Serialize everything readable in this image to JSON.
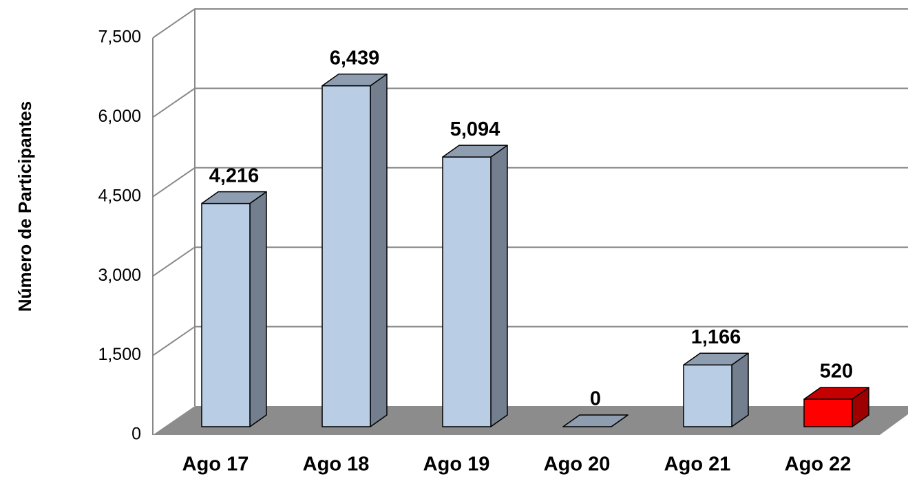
{
  "chart_data": {
    "type": "bar3d",
    "y_label": "Número de Participantes",
    "categories": [
      "Ago 17",
      "Ago 18",
      "Ago 19",
      "Ago 20",
      "Ago 21",
      "Ago 22"
    ],
    "values": [
      4216,
      6439,
      5094,
      0,
      1166,
      520
    ],
    "value_labels": [
      "4,216",
      "6,439",
      "5,094",
      "0",
      "1,166",
      "520"
    ],
    "colors": [
      "#b9cde5",
      "#b9cde5",
      "#b9cde5",
      "#b9cde5",
      "#b9cde5",
      "#ff0000"
    ],
    "ylim": [
      0,
      7500
    ],
    "yticks": [
      0,
      {
        "value": 1500,
        "label": "1,500"
      },
      {
        "value": 3000,
        "label": "3,000"
      },
      {
        "value": 4500,
        "label": "4,500"
      },
      {
        "value": 6000,
        "label": "6,000"
      },
      {
        "value": 7500,
        "label": "7,500"
      }
    ],
    "grid": true
  }
}
